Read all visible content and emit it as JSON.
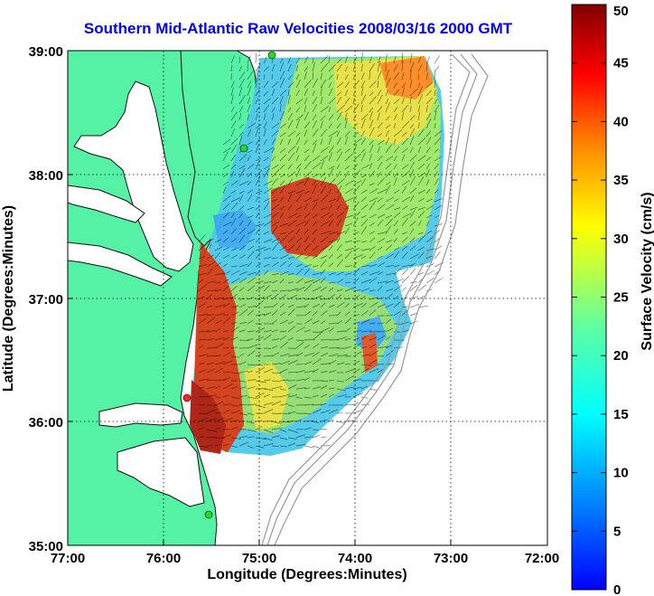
{
  "title": "Southern Mid-Atlantic Raw Velocities 2008/03/16 2000 GMT",
  "x_axis": {
    "label": "Longitude (Degrees:Minutes)",
    "ticks": [
      "77:00",
      "76:00",
      "75:00",
      "74:00",
      "73:00",
      "72:00"
    ]
  },
  "y_axis": {
    "label": "Latitude (Degrees:Minutes)",
    "ticks": [
      "39:00",
      "38:00",
      "37:00",
      "36:00",
      "35:00"
    ]
  },
  "colorbar": {
    "label": "Surface Velocity (cm/s)",
    "range": [
      0,
      50
    ],
    "ticks": [
      "0",
      "5",
      "10",
      "15",
      "20",
      "25",
      "30",
      "35",
      "40",
      "45",
      "50"
    ],
    "colormap": "jet"
  },
  "map_extent": {
    "lon": [
      -77,
      -72
    ],
    "lat": [
      35,
      39
    ]
  },
  "colors": {
    "title": "#0000ff",
    "land": "#55f2a6",
    "station": "#22dd22",
    "station_alert": "#ff2222"
  },
  "grid": "dotted"
}
